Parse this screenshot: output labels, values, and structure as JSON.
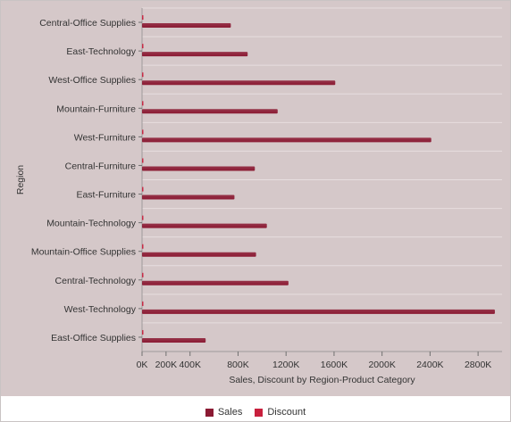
{
  "chart_data": {
    "type": "bar",
    "orientation": "horizontal",
    "xlabel": "Sales, Discount by Region-Product Category",
    "ylabel": "Region",
    "xlim": [
      0,
      3000000
    ],
    "x_ticks": [
      0,
      200000,
      400000,
      800000,
      1200000,
      1600000,
      2000000,
      2400000,
      2800000
    ],
    "x_tick_labels": [
      "0K",
      "200K",
      "400K",
      "800K",
      "1200K",
      "1600K",
      "2000K",
      "2400K",
      "2800K"
    ],
    "categories": [
      "Central-Office Supplies",
      "East-Technology",
      "West-Office Supplies",
      "Mountain-Furniture",
      "West-Furniture",
      "Central-Furniture",
      "East-Furniture",
      "Mountain-Technology",
      "Mountain-Office Supplies",
      "Central-Technology",
      "West-Technology",
      "East-Office Supplies"
    ],
    "series": [
      {
        "name": "Sales",
        "color": "#8b1a33",
        "values": [
          740000,
          880000,
          1610000,
          1130000,
          2410000,
          940000,
          770000,
          1040000,
          950000,
          1220000,
          2940000,
          530000
        ]
      },
      {
        "name": "Discount",
        "color": "#c8203d",
        "values": [
          90,
          110,
          160,
          120,
          210,
          100,
          80,
          110,
          100,
          130,
          240,
          70
        ]
      }
    ],
    "grid": true,
    "legend_position": "bottom"
  }
}
